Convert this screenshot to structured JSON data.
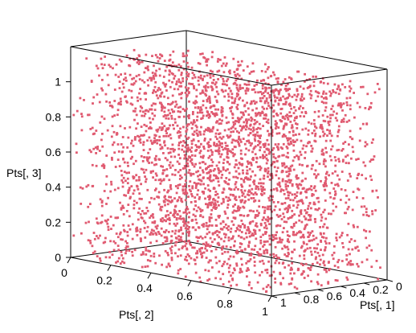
{
  "chart_data": {
    "type": "scatter",
    "title": "",
    "x_axis": {
      "label": "Pts[, 1]",
      "range": [
        0,
        1
      ],
      "ticks": [
        "0",
        "0.2",
        "0.4",
        "0.6",
        "0.8",
        "1"
      ]
    },
    "y_axis": {
      "label": "Pts[, 2]",
      "range": [
        0,
        1
      ],
      "ticks": [
        "0",
        "0.2",
        "0.4",
        "0.6",
        "0.8",
        "1"
      ]
    },
    "z_axis": {
      "label": "Pts[, 3]",
      "range": [
        0,
        1.2
      ],
      "ticks": [
        "0",
        "0.2",
        "0.4",
        "0.6",
        "0.8",
        "1"
      ]
    },
    "point_color": "#E05A70",
    "z_layers": [
      0.0,
      0.1,
      0.2,
      0.3,
      0.4,
      0.5,
      0.6,
      0.7,
      0.8,
      0.9,
      1.0,
      1.1
    ],
    "points_per_layer": 280,
    "grid": false,
    "legend": "none"
  }
}
